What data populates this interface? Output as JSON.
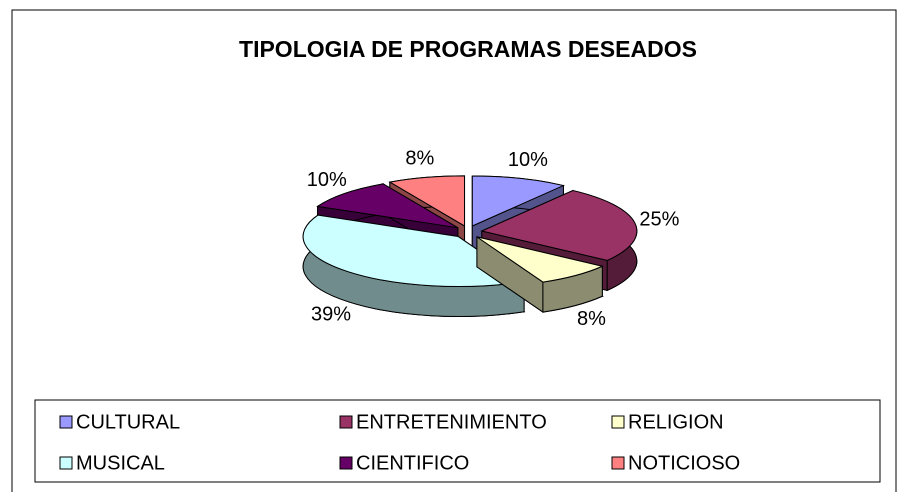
{
  "chart_data": {
    "type": "pie3d",
    "title": "TIPOLOGIA DE PROGRAMAS DESEADOS",
    "categories": [
      "CULTURAL",
      "ENTRETENIMIENTO",
      "RELIGION",
      "MUSICAL",
      "CIENTIFICO",
      "NOTICIOSO"
    ],
    "values": [
      10,
      25,
      8,
      39,
      10,
      8
    ],
    "value_labels": [
      "10%",
      "25%",
      "8%",
      "39%",
      "10%",
      "8%"
    ],
    "colors": [
      "#9999ff",
      "#993366",
      "#ffffcc",
      "#ccffff",
      "#660066",
      "#ff8080"
    ],
    "legend": "bottom"
  }
}
